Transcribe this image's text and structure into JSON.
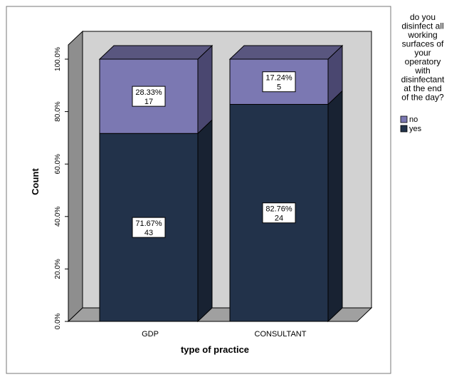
{
  "chart_data": {
    "type": "bar",
    "stacked": true,
    "percent": true,
    "three_d": true,
    "categories": [
      "GDP",
      "CONSULTANT"
    ],
    "xlabel": "type of practice",
    "ylabel": "Count",
    "ylim": [
      0,
      100
    ],
    "yticks": [
      "0.0%",
      "20.0%",
      "40.0%",
      "60.0%",
      "80.0%",
      "100.0%"
    ],
    "legend_title": "do you disinfect all working surfaces of your operatory with disinfectant at the end of the day?",
    "legend_title_lines": [
      "do you",
      "disinfect all",
      "working",
      "surfaces of",
      "your",
      "operatory",
      "with",
      "disinfectant",
      "at the end",
      "of the day?"
    ],
    "legend_position": "right",
    "series": [
      {
        "name": "yes",
        "color": "#22324a",
        "percent": [
          71.67,
          82.76
        ],
        "counts": [
          43,
          24
        ],
        "labels": [
          [
            "71.67%",
            "43"
          ],
          [
            "82.76%",
            "24"
          ]
        ]
      },
      {
        "name": "no",
        "color": "#7b78b2",
        "percent": [
          28.33,
          17.24
        ],
        "counts": [
          17,
          5
        ],
        "labels": [
          [
            "28.33%",
            "17"
          ],
          [
            "17.24%",
            "5"
          ]
        ]
      }
    ],
    "legend_order": [
      "no",
      "yes"
    ],
    "colors": {
      "wall": "#d2d2d2",
      "side_wall": "#8e8e8e",
      "floor": "#a0a0a0",
      "yes_side": "#182232",
      "yes_top": "#3a4a66",
      "no_side": "#4a4770",
      "no_top": "#59567f",
      "border": "#000000"
    }
  }
}
